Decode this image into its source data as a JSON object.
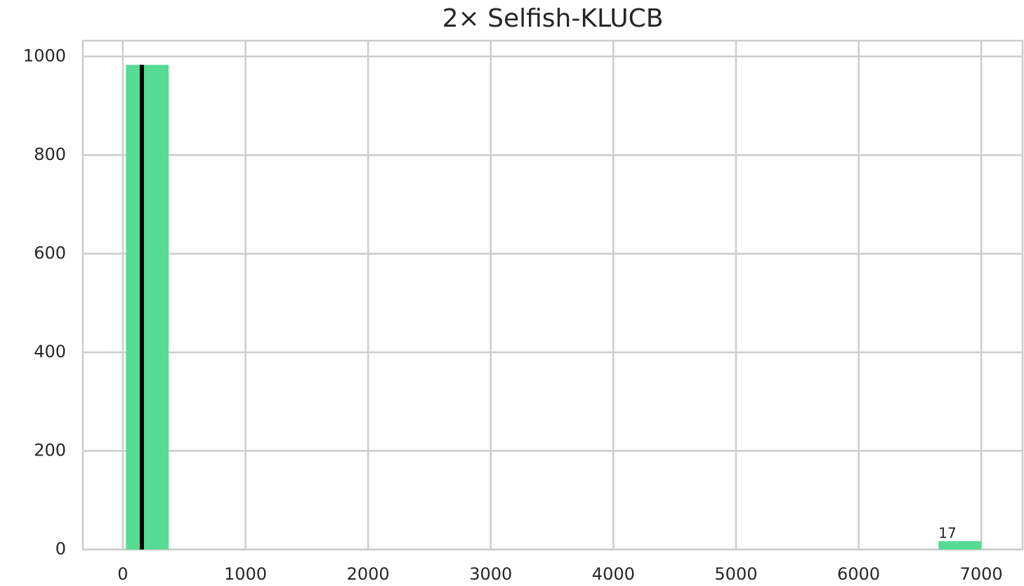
{
  "chart_data": {
    "type": "histogram",
    "title": "2× Selfish-KLUCB",
    "bins": [
      25,
      373.75,
      722.5,
      1071.25,
      1420,
      1768.75,
      2117.5,
      2466.25,
      2815,
      3163.75,
      3512.5,
      3861.25,
      4210,
      4558.75,
      4907.5,
      5256.25,
      5605,
      5953.75,
      6302.5,
      6651.25,
      7000
    ],
    "values": [
      983,
      0,
      0,
      0,
      0,
      0,
      0,
      0,
      0,
      0,
      0,
      0,
      0,
      0,
      0,
      0,
      0,
      0,
      0,
      17
    ],
    "value_labels": [
      null,
      null,
      null,
      null,
      null,
      null,
      null,
      null,
      null,
      null,
      null,
      null,
      null,
      null,
      null,
      null,
      null,
      null,
      null,
      "17"
    ],
    "color": "#57db93",
    "vline": {
      "x": 155,
      "color": "#000000"
    },
    "xlim": [
      -326,
      7337
    ],
    "xticks": [
      0,
      1000,
      2000,
      3000,
      4000,
      5000,
      6000,
      7000
    ],
    "ylim": [
      0,
      1032
    ],
    "yticks": [
      0,
      200,
      400,
      600,
      800,
      1000
    ],
    "grid": true
  }
}
